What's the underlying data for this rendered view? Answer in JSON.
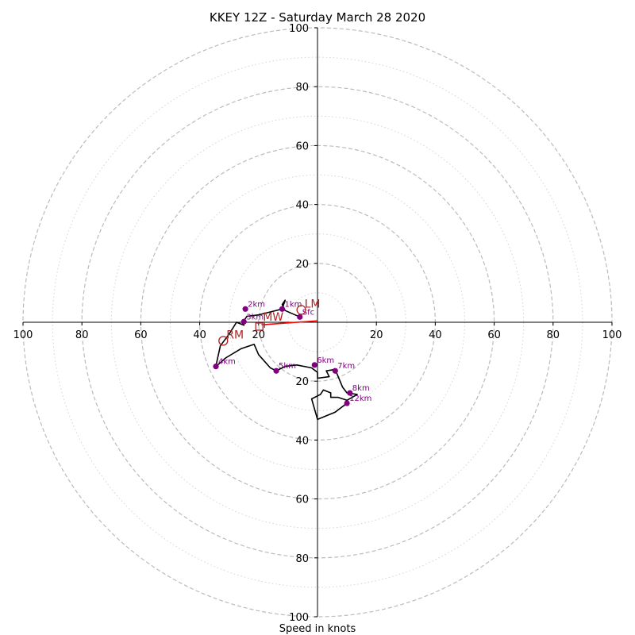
{
  "chart_data": {
    "type": "hodograph",
    "title": "KKEY 12Z - Saturday March 28 2020",
    "xlabel": "Speed in knots",
    "units": "knots",
    "xlim": [
      -100,
      100
    ],
    "ylim": [
      -100,
      100
    ],
    "major_rings": [
      20,
      40,
      60,
      80,
      100
    ],
    "minor_rings": [
      10,
      30,
      50,
      70,
      90
    ],
    "x_tick_labels": [
      "100",
      "80",
      "60",
      "40",
      "20",
      "20",
      "40",
      "60",
      "80",
      "100"
    ],
    "y_tick_labels": [
      "100",
      "80",
      "60",
      "40",
      "20",
      "20",
      "40",
      "60",
      "80",
      "100"
    ],
    "grid": true,
    "trace": [
      [
        -6,
        1.8
      ],
      [
        -11,
        4
      ],
      [
        -12,
        6
      ],
      [
        -11,
        7.5
      ],
      [
        -12,
        4.5
      ],
      [
        -16,
        3.5
      ],
      [
        -20,
        2.5
      ],
      [
        -24,
        2
      ],
      [
        -25,
        0.5
      ],
      [
        -25,
        -1
      ],
      [
        -27.5,
        0
      ],
      [
        -30,
        -4
      ],
      [
        -33,
        -8
      ],
      [
        -34,
        -12.5
      ],
      [
        -34.5,
        -15
      ],
      [
        -31,
        -12
      ],
      [
        -26,
        -9
      ],
      [
        -21.5,
        -7.5
      ],
      [
        -20,
        -11
      ],
      [
        -16,
        -15.5
      ],
      [
        -14,
        -16.5
      ],
      [
        -11,
        -15
      ],
      [
        -7,
        -14.5
      ],
      [
        -2,
        -15.5
      ],
      [
        0,
        -17
      ],
      [
        0,
        -19
      ],
      [
        4,
        -18.5
      ],
      [
        3,
        -16.5
      ],
      [
        6,
        -16
      ],
      [
        8.5,
        -22
      ],
      [
        10,
        -24
      ],
      [
        13.5,
        -24.5
      ],
      [
        10,
        -26.5
      ],
      [
        7,
        -25.5
      ],
      [
        4.5,
        -25.5
      ],
      [
        4.5,
        -24
      ],
      [
        2,
        -23
      ],
      [
        1,
        -24.5
      ],
      [
        0,
        -25
      ],
      [
        -2,
        -26
      ],
      [
        0,
        -33
      ],
      [
        6,
        -30.5
      ],
      [
        8,
        -29
      ],
      [
        10,
        -27.5
      ]
    ],
    "height_markers": [
      {
        "label": "Sfc",
        "u": -6,
        "v": 1.8
      },
      {
        "label": "1km",
        "u": -12,
        "v": 4.5
      },
      {
        "label": "2km",
        "u": -24.5,
        "v": 4.5
      },
      {
        "label": "3km",
        "u": -25,
        "v": 0.2
      },
      {
        "label": "4km",
        "u": -34.5,
        "v": -15
      },
      {
        "label": "5km",
        "u": -14,
        "v": -16.5
      },
      {
        "label": "6km",
        "u": -1,
        "v": -14.5
      },
      {
        "label": "7km",
        "u": 6,
        "v": -16.5
      },
      {
        "label": "8km",
        "u": 11,
        "v": -24
      },
      {
        "label": "12km",
        "u": 10,
        "v": -27.5
      }
    ],
    "storm_motions": [
      {
        "label": "RM",
        "u": -32,
        "v": -6.3
      },
      {
        "label": "LM",
        "u": -5.5,
        "v": 4.2
      },
      {
        "label": "MW",
        "u": -18,
        "v": -0.8
      }
    ],
    "shear_vector": {
      "from": [
        -18,
        -0.8
      ],
      "to": [
        0,
        0.5
      ]
    },
    "colors": {
      "trace": "#000000",
      "markers": "#800080",
      "storm": "#b22222",
      "shear": "#ff0000",
      "grid": "#bbbbbb"
    }
  }
}
